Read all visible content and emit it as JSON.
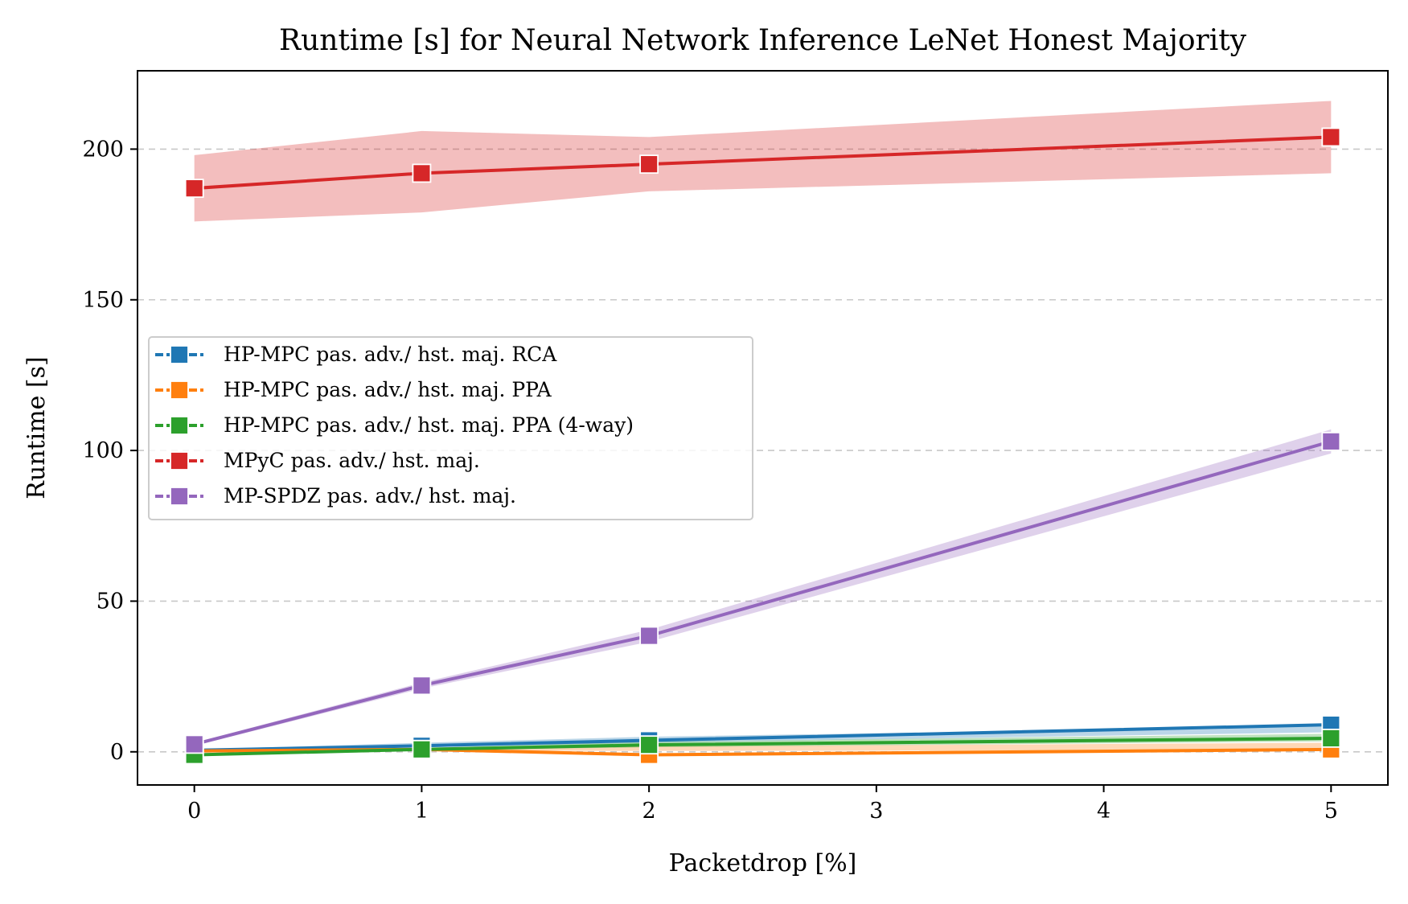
{
  "chart_data": {
    "type": "line",
    "title": "Runtime [s] for Neural Network Inference LeNet Honest Majority",
    "xlabel": "Packetdrop [%]",
    "ylabel": "Runtime [s]",
    "xlim": [
      -0.25,
      5.25
    ],
    "ylim": [
      -11,
      226
    ],
    "xticks": [
      0,
      1,
      2,
      3,
      4,
      5
    ],
    "yticks": [
      0,
      50,
      100,
      150,
      200
    ],
    "grid": "horizontal dashed",
    "legend_position": "center-left",
    "x": [
      0,
      1,
      2,
      5
    ],
    "series": [
      {
        "name": "HP-MPC pas. adv./ hst. maj. RCA",
        "color": "#1f77b4",
        "values": [
          0.5,
          2.0,
          3.8,
          9.0
        ],
        "band_lower": [
          0.2,
          1.5,
          3.0,
          6.5
        ],
        "band_upper": [
          0.8,
          3.0,
          5.0,
          8.5
        ]
      },
      {
        "name": "HP-MPC pas. adv./ hst. maj. PPA",
        "color": "#ff7f0e",
        "values": [
          0.3,
          0.8,
          -1.0,
          0.8
        ],
        "band_lower": [
          0.0,
          0.4,
          0.3,
          0.5
        ],
        "band_upper": [
          0.6,
          1.2,
          1.8,
          3.0
        ]
      },
      {
        "name": "HP-MPC pas. adv./ hst. maj. PPA (4-way)",
        "color": "#2ca02c",
        "values": [
          -1.0,
          0.8,
          2.3,
          4.5
        ],
        "band_lower": [
          0.1,
          0.6,
          1.5,
          3.5
        ],
        "band_upper": [
          0.6,
          1.3,
          3.3,
          6.0
        ]
      },
      {
        "name": "MPyC pas. adv./ hst. maj.",
        "color": "#d62728",
        "values": [
          187,
          192,
          195,
          204
        ],
        "band_lower": [
          176,
          179,
          186,
          192
        ],
        "band_upper": [
          198,
          206,
          204,
          216
        ]
      },
      {
        "name": "MP-SPDZ pas. adv./ hst. maj.",
        "color": "#9467bd",
        "values": [
          2.5,
          22,
          38.5,
          103
        ],
        "band_lower": [
          2.0,
          21,
          36.5,
          99
        ],
        "band_upper": [
          3.0,
          23,
          40.5,
          107
        ]
      }
    ]
  }
}
